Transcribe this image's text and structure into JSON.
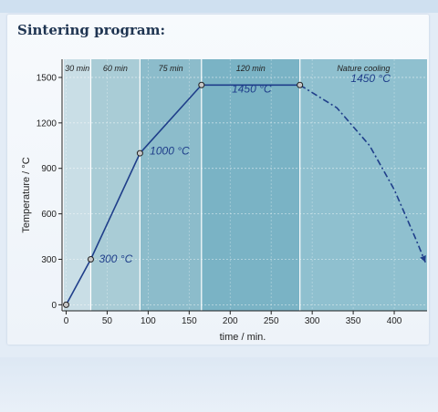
{
  "page": {
    "title": "Sintering program:"
  },
  "chart_data": {
    "type": "line",
    "title": "",
    "xlabel": "time / min.",
    "ylabel": "Temperature / °C",
    "xlim": [
      -5,
      440
    ],
    "ylim": [
      -40,
      1620
    ],
    "x_ticks": [
      0,
      50,
      100,
      150,
      200,
      250,
      300,
      350,
      400
    ],
    "y_ticks": [
      0,
      300,
      600,
      900,
      1200,
      1500
    ],
    "series": [
      {
        "style": "solid",
        "points": [
          [
            0,
            0
          ],
          [
            30,
            300
          ],
          [
            90,
            1000
          ],
          [
            165,
            1450
          ],
          [
            285,
            1450
          ]
        ]
      },
      {
        "style": "dash-dot",
        "points": [
          [
            285,
            1450
          ],
          [
            330,
            1300
          ],
          [
            370,
            1050
          ],
          [
            400,
            760
          ],
          [
            425,
            450
          ],
          [
            438,
            280
          ]
        ]
      }
    ],
    "markers": [
      [
        0,
        0
      ],
      [
        30,
        300
      ],
      [
        90,
        1000
      ],
      [
        165,
        1450
      ],
      [
        285,
        1450
      ]
    ],
    "data_labels": [
      {
        "text": "300 °C",
        "x": 40,
        "y": 280
      },
      {
        "text": "1000 °C",
        "x": 102,
        "y": 990
      },
      {
        "text": "1450 °C",
        "x": 202,
        "y": 1400
      },
      {
        "text": "1450 °C",
        "x": 347,
        "y": 1470
      }
    ],
    "phases": [
      {
        "label": "30 min",
        "start": -3,
        "end": 30,
        "color": "#c9dee6"
      },
      {
        "label": "60 min",
        "start": 30,
        "end": 90,
        "color": "#a9ccd6"
      },
      {
        "label": "75 min",
        "start": 90,
        "end": 165,
        "color": "#8cbccb"
      },
      {
        "label": "120 min",
        "start": 165,
        "end": 285,
        "color": "#7ab3c5"
      },
      {
        "label": "Nature cooling",
        "start": 285,
        "end": 445,
        "color": "#8fc0cf"
      }
    ],
    "grid": true,
    "colors": {
      "line": "#1f3e8a",
      "marker_fill": "#c8c8c8"
    }
  }
}
